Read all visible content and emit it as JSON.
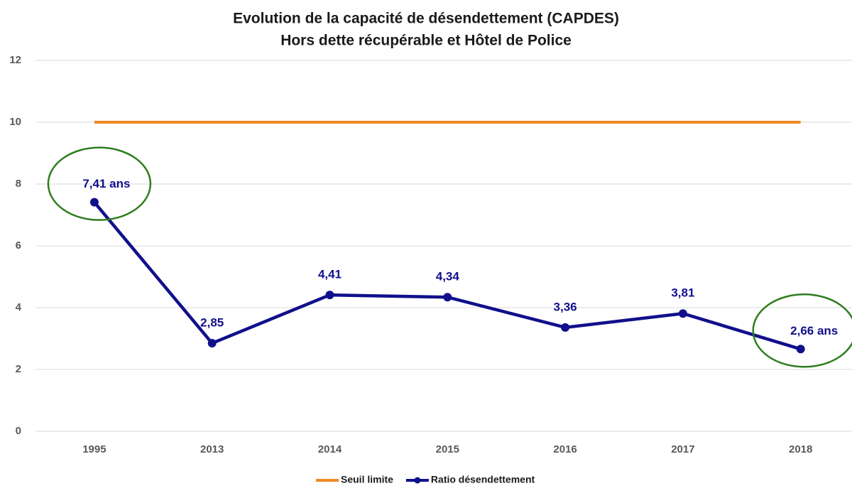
{
  "chart_data": {
    "type": "line",
    "title": "Evolution de la capacité de désendettement (CAPDES)",
    "subtitle": "Hors dette récupérable et Hôtel de Police",
    "categories": [
      "1995",
      "2013",
      "2014",
      "2015",
      "2016",
      "2017",
      "2018"
    ],
    "series": [
      {
        "name": "Seuil limite",
        "color": "#f08a24",
        "values": [
          10,
          10,
          10,
          10,
          10,
          10,
          10
        ]
      },
      {
        "name": "Ratio désendettement",
        "color": "#10108c",
        "values": [
          7.41,
          2.85,
          4.41,
          4.34,
          3.36,
          3.81,
          2.66
        ],
        "value_labels": [
          "7,41 ans",
          "2,85",
          "4,41",
          "4,34",
          "3,36",
          "3,81",
          "2,66 ans"
        ]
      }
    ],
    "ylim": [
      0,
      12
    ],
    "yticks": [
      0,
      2,
      4,
      6,
      8,
      10,
      12
    ],
    "grid": true,
    "legend": "bottom"
  }
}
